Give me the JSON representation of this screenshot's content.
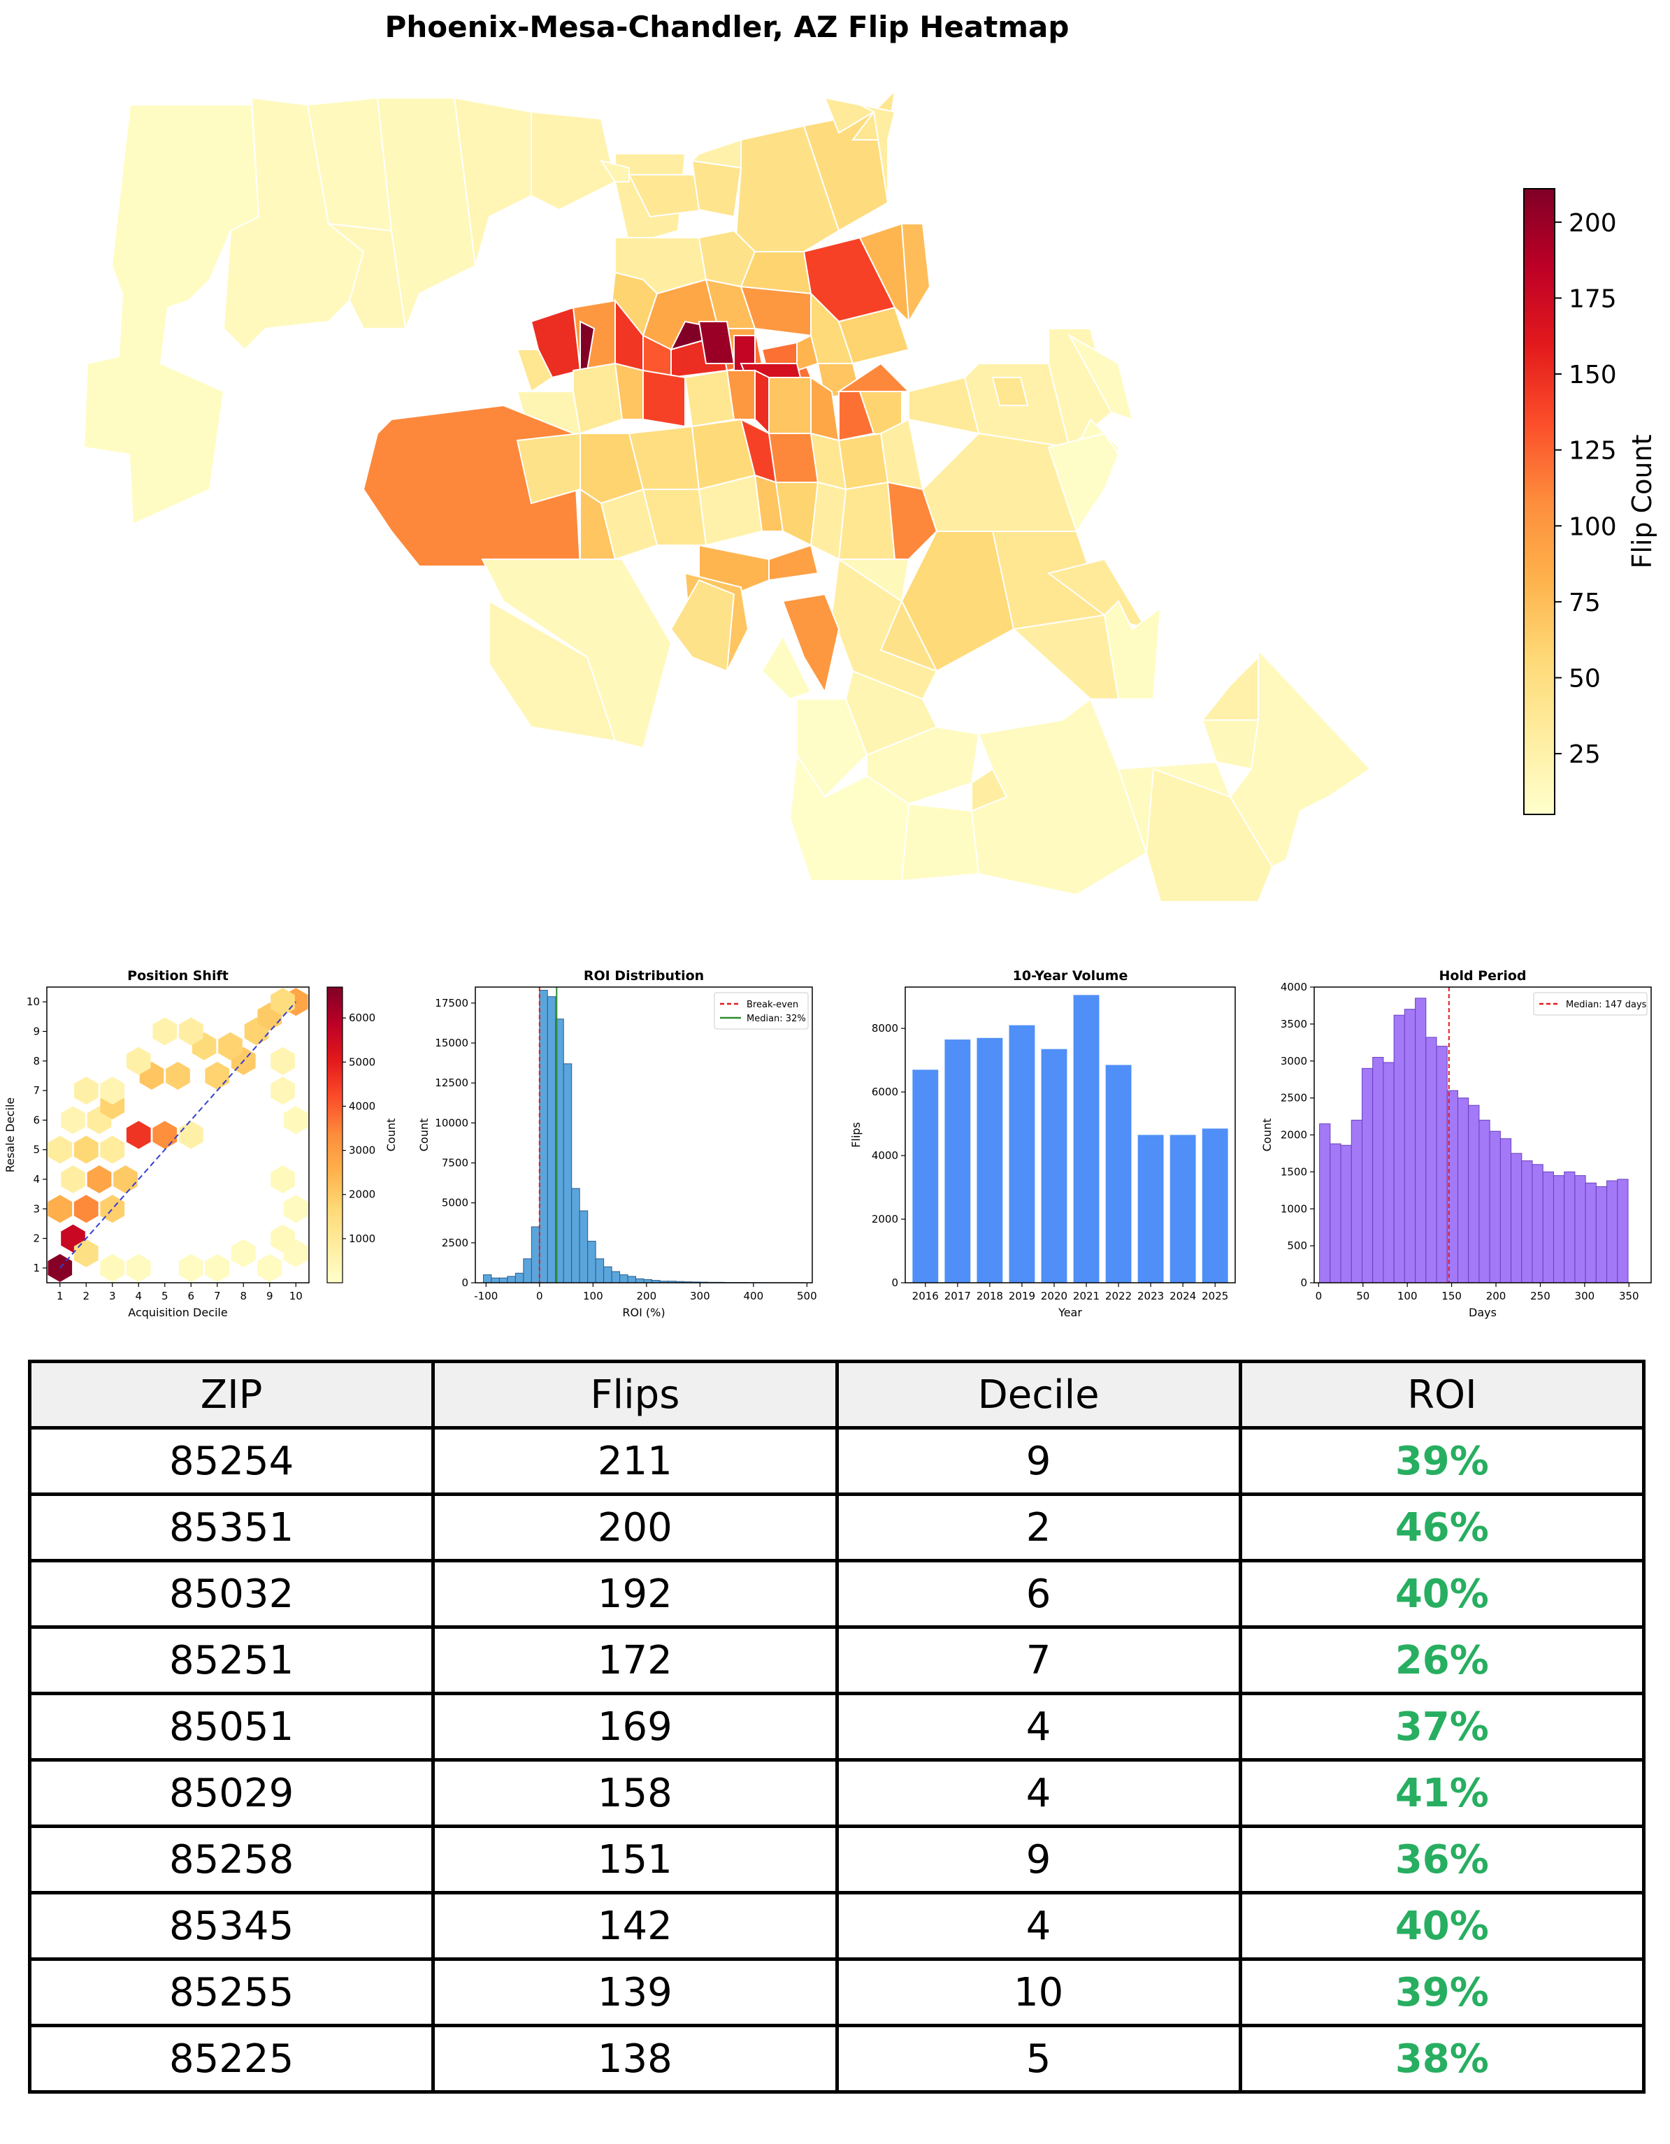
{
  "title": "Phoenix-Mesa-Chandler, AZ Flip Heatmap",
  "colors": {
    "heat": [
      "#ffffcc",
      "#ffeda0",
      "#fed976",
      "#feb24c",
      "#fd8d3c",
      "#fc4e2a",
      "#e31a1c",
      "#bd0026",
      "#800026"
    ],
    "roi_green": "#27ae60",
    "roi_bar": "#5aa5dc",
    "volume_bar": "#4f8ff7",
    "hold_bar": "#a379f7",
    "breakeven_line": "#e31a1c",
    "median_roi_line": "#2e8b2e",
    "diag_line": "#3340d0"
  },
  "chart_data": [
    {
      "type": "heatmap",
      "name": "flip-map",
      "colorbar": {
        "label": "Flip Count",
        "ticks": [
          25,
          50,
          75,
          100,
          125,
          150,
          175,
          200
        ],
        "range": [
          5,
          211
        ]
      }
    },
    {
      "type": "heatmap",
      "title": "Position Shift",
      "xlabel": "Acquisition Decile",
      "ylabel": "Resale Decile",
      "xticks": [
        1,
        2,
        3,
        4,
        5,
        6,
        7,
        8,
        9,
        10
      ],
      "yticks": [
        1,
        2,
        3,
        4,
        5,
        6,
        7,
        8,
        9,
        10
      ],
      "colorbar": {
        "label": "Count",
        "ticks": [
          1000,
          2000,
          3000,
          4000,
          5000,
          6000
        ],
        "range": [
          0,
          6700
        ]
      },
      "cells": [
        {
          "x": 1,
          "y": 1,
          "v": 6600
        },
        {
          "x": 1.5,
          "y": 2,
          "v": 5600
        },
        {
          "x": 2,
          "y": 1.5,
          "v": 1400
        },
        {
          "x": 1,
          "y": 3,
          "v": 2600
        },
        {
          "x": 2,
          "y": 3,
          "v": 3400
        },
        {
          "x": 2.5,
          "y": 4,
          "v": 2800
        },
        {
          "x": 1.5,
          "y": 4,
          "v": 800
        },
        {
          "x": 3,
          "y": 3,
          "v": 1900
        },
        {
          "x": 3.5,
          "y": 4,
          "v": 2000
        },
        {
          "x": 1,
          "y": 5,
          "v": 900
        },
        {
          "x": 2,
          "y": 5,
          "v": 1700
        },
        {
          "x": 3,
          "y": 5,
          "v": 900
        },
        {
          "x": 1.5,
          "y": 6,
          "v": 500
        },
        {
          "x": 2.5,
          "y": 6,
          "v": 900
        },
        {
          "x": 3,
          "y": 6.5,
          "v": 1800
        },
        {
          "x": 4,
          "y": 5.5,
          "v": 4600
        },
        {
          "x": 5,
          "y": 5.5,
          "v": 3300
        },
        {
          "x": 6,
          "y": 5.5,
          "v": 700
        },
        {
          "x": 2,
          "y": 7,
          "v": 700
        },
        {
          "x": 3,
          "y": 7,
          "v": 500
        },
        {
          "x": 4.5,
          "y": 7.5,
          "v": 2100
        },
        {
          "x": 5.5,
          "y": 7.5,
          "v": 1900
        },
        {
          "x": 7,
          "y": 7.5,
          "v": 1800
        },
        {
          "x": 8,
          "y": 8,
          "v": 2000
        },
        {
          "x": 6.5,
          "y": 8.5,
          "v": 1600
        },
        {
          "x": 7.5,
          "y": 8.5,
          "v": 1800
        },
        {
          "x": 8.5,
          "y": 9,
          "v": 1800
        },
        {
          "x": 9,
          "y": 9.5,
          "v": 2000
        },
        {
          "x": 10,
          "y": 10,
          "v": 2800
        },
        {
          "x": 9.5,
          "y": 10,
          "v": 1500
        },
        {
          "x": 5,
          "y": 9,
          "v": 600
        },
        {
          "x": 6,
          "y": 9,
          "v": 800
        },
        {
          "x": 4,
          "y": 8,
          "v": 700
        },
        {
          "x": 9.5,
          "y": 8,
          "v": 500
        },
        {
          "x": 9.5,
          "y": 7,
          "v": 400
        },
        {
          "x": 10,
          "y": 6,
          "v": 300
        },
        {
          "x": 9.5,
          "y": 4,
          "v": 300
        },
        {
          "x": 10,
          "y": 3,
          "v": 250
        },
        {
          "x": 9,
          "y": 1,
          "v": 200
        },
        {
          "x": 7,
          "y": 1,
          "v": 200
        },
        {
          "x": 6,
          "y": 1,
          "v": 200
        },
        {
          "x": 3,
          "y": 1,
          "v": 300
        },
        {
          "x": 4,
          "y": 1,
          "v": 250
        },
        {
          "x": 10,
          "y": 1.5,
          "v": 250
        },
        {
          "x": 9.5,
          "y": 2,
          "v": 300
        },
        {
          "x": 8,
          "y": 1.5,
          "v": 200
        }
      ]
    },
    {
      "type": "bar",
      "title": "ROI Distribution",
      "xlabel": "ROI (%)",
      "ylabel": "Count",
      "xlim": [
        -120,
        510
      ],
      "ylim": [
        0,
        18500
      ],
      "xticks": [
        -100,
        0,
        100,
        200,
        300,
        400,
        500
      ],
      "yticks": [
        0,
        2500,
        5000,
        7500,
        10000,
        12500,
        15000,
        17500
      ],
      "bin_width": 15,
      "bins": [
        {
          "x": -105,
          "v": 500
        },
        {
          "x": -90,
          "v": 300
        },
        {
          "x": -75,
          "v": 300
        },
        {
          "x": -60,
          "v": 400
        },
        {
          "x": -45,
          "v": 600
        },
        {
          "x": -30,
          "v": 1500
        },
        {
          "x": -15,
          "v": 3500
        },
        {
          "x": 0,
          "v": 18300
        },
        {
          "x": 15,
          "v": 17900
        },
        {
          "x": 30,
          "v": 16500
        },
        {
          "x": 45,
          "v": 13700
        },
        {
          "x": 60,
          "v": 5900
        },
        {
          "x": 75,
          "v": 4500
        },
        {
          "x": 90,
          "v": 2600
        },
        {
          "x": 105,
          "v": 1500
        },
        {
          "x": 120,
          "v": 1000
        },
        {
          "x": 135,
          "v": 700
        },
        {
          "x": 150,
          "v": 500
        },
        {
          "x": 165,
          "v": 400
        },
        {
          "x": 180,
          "v": 250
        },
        {
          "x": 195,
          "v": 200
        },
        {
          "x": 210,
          "v": 150
        },
        {
          "x": 225,
          "v": 100
        },
        {
          "x": 240,
          "v": 100
        },
        {
          "x": 255,
          "v": 80
        },
        {
          "x": 270,
          "v": 60
        },
        {
          "x": 285,
          "v": 50
        },
        {
          "x": 300,
          "v": 40
        },
        {
          "x": 315,
          "v": 30
        },
        {
          "x": 330,
          "v": 30
        },
        {
          "x": 345,
          "v": 20
        },
        {
          "x": 360,
          "v": 20
        },
        {
          "x": 375,
          "v": 20
        },
        {
          "x": 390,
          "v": 15
        },
        {
          "x": 405,
          "v": 15
        },
        {
          "x": 420,
          "v": 10
        },
        {
          "x": 435,
          "v": 10
        },
        {
          "x": 450,
          "v": 10
        },
        {
          "x": 465,
          "v": 10
        },
        {
          "x": 480,
          "v": 10
        }
      ],
      "lines": [
        {
          "x": 0,
          "label": "Break-even"
        },
        {
          "x": 32,
          "label": "Median: 32%"
        }
      ]
    },
    {
      "type": "bar",
      "title": "10-Year Volume",
      "xlabel": "Year",
      "ylabel": "Flips",
      "ylim": [
        0,
        9300
      ],
      "yticks": [
        0,
        2000,
        4000,
        6000,
        8000
      ],
      "categories": [
        "2016",
        "2017",
        "2018",
        "2019",
        "2020",
        "2021",
        "2022",
        "2023",
        "2024",
        "2025"
      ],
      "values": [
        6700,
        7650,
        7700,
        8100,
        7350,
        9050,
        6850,
        4650,
        4650,
        4850
      ]
    },
    {
      "type": "bar",
      "title": "Hold Period",
      "xlabel": "Days",
      "ylabel": "Count",
      "xlim": [
        -5,
        375
      ],
      "ylim": [
        0,
        4000
      ],
      "xticks": [
        0,
        50,
        100,
        150,
        200,
        250,
        300,
        350
      ],
      "yticks": [
        0,
        500,
        1000,
        1500,
        2000,
        2500,
        3000,
        3500,
        4000
      ],
      "bin_start": 1,
      "bin_width": 12,
      "values": [
        2150,
        1880,
        1860,
        2200,
        2900,
        3050,
        2980,
        3620,
        3700,
        3850,
        3320,
        3200,
        2600,
        2500,
        2400,
        2200,
        2050,
        1950,
        1750,
        1650,
        1600,
        1500,
        1450,
        1500,
        1450,
        1350,
        1300,
        1380,
        1400
      ],
      "lines": [
        {
          "x": 147,
          "label": "Median: 147 days"
        }
      ]
    }
  ],
  "table": {
    "headers": [
      "ZIP",
      "Flips",
      "Decile",
      "ROI"
    ],
    "rows": [
      {
        "zip": "85254",
        "flips": "211",
        "decile": "9",
        "roi": "39%"
      },
      {
        "zip": "85351",
        "flips": "200",
        "decile": "2",
        "roi": "46%"
      },
      {
        "zip": "85032",
        "flips": "192",
        "decile": "6",
        "roi": "40%"
      },
      {
        "zip": "85251",
        "flips": "172",
        "decile": "7",
        "roi": "26%"
      },
      {
        "zip": "85051",
        "flips": "169",
        "decile": "4",
        "roi": "37%"
      },
      {
        "zip": "85029",
        "flips": "158",
        "decile": "4",
        "roi": "41%"
      },
      {
        "zip": "85258",
        "flips": "151",
        "decile": "9",
        "roi": "36%"
      },
      {
        "zip": "85345",
        "flips": "142",
        "decile": "4",
        "roi": "40%"
      },
      {
        "zip": "85255",
        "flips": "139",
        "decile": "10",
        "roi": "39%"
      },
      {
        "zip": "85225",
        "flips": "138",
        "decile": "5",
        "roi": "38%"
      }
    ]
  }
}
